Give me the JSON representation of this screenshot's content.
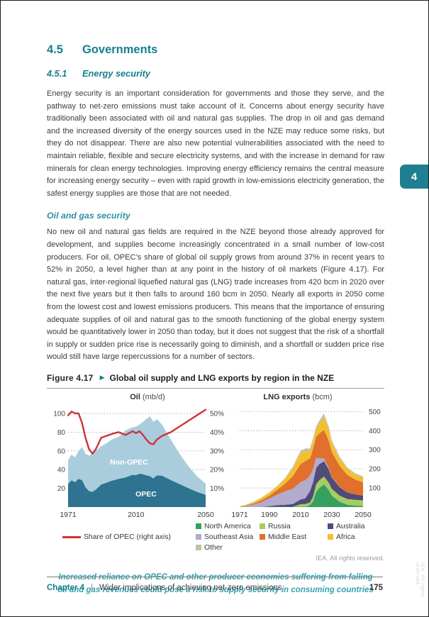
{
  "page": {
    "section_number": "4.5",
    "section_title": "Governments",
    "subsection_number": "4.5.1",
    "subsection_title": "Energy security",
    "side_tab": "4",
    "watermark": "IEA. All rights reserved.",
    "para1": "Energy security is an important consideration for governments and those they serve, and the pathway to net-zero emissions must take account of it. Concerns about energy security have traditionally been associated with oil and natural gas supplies. The drop in oil and gas demand and the increased diversity of the energy sources used in the NZE may reduce some risks, but they do not disappear. There are also new potential vulnerabilities associated with the need to maintain reliable, flexible and secure electricity systems, and with the increase in demand for raw minerals for clean energy technologies. Improving energy efficiency remains the central measure for increasing energy security – even with rapid growth in low-emissions electricity generation, the safest energy supplies are those that are not needed.",
    "sub_heading": "Oil and gas security",
    "para2": "No new oil and natural gas fields are required in the NZE beyond those already approved for development, and supplies become increasingly concentrated in a small number of low-cost producers. For oil, OPEC’s share of global oil supply grows from around 37% in recent years to 52% in 2050, a level higher than at any point in the history of oil markets (Figure 4.17). For natural gas, inter-regional liquefied natural gas (LNG) trade increases from 420 bcm in 2020 over the next five years but it then falls to around 160 bcm in 2050. Nearly all exports in 2050 come from the lowest cost and lowest emissions producers. This means that the importance of ensuring adequate supplies of oil and natural gas to the smooth functioning of the global energy system would be quantitatively lower in 2050 than today, but it does not suggest that the risk of a shortfall in supply or sudden price rise is necessarily going to diminish, and a shortfall or sudden price rise would still have large repercussions for a number of sectors.",
    "figure": {
      "label": "Figure 4.17",
      "arrow": "▶",
      "title": "Global oil supply and LNG exports by region in the NZE",
      "iea_note": "IEA. All rights reserved."
    },
    "caption_line1": "Increased reliance on OPEC and other producer economies suffering from falling",
    "caption_line2": "oil and gas revenues could pose a risk to supply security in consuming countries",
    "footer": {
      "chapter": "Chapter 4",
      "separator": "|",
      "title": "Wider implications of achieving net-zero emissions",
      "page_number": "175"
    }
  },
  "chart_data": [
    {
      "type": "area",
      "title": "Oil",
      "unit": "(mb/d)",
      "x": [
        1971,
        1973,
        1975,
        1977,
        1979,
        1981,
        1983,
        1985,
        1987,
        1990,
        1993,
        1996,
        2000,
        2004,
        2008,
        2010,
        2012,
        2014,
        2016,
        2018,
        2020,
        2022,
        2025,
        2030,
        2035,
        2040,
        2045,
        2050
      ],
      "areas": [
        {
          "name": "OPEC",
          "color": "#2e7390",
          "values": [
            24.5,
            28.5,
            26.5,
            30,
            28.8,
            21,
            17,
            16.2,
            18.6,
            24,
            25.8,
            28,
            30,
            31.6,
            34.4,
            34,
            35.6,
            35,
            33.8,
            33,
            30.5,
            33.8,
            33.4,
            28.8,
            24.5,
            20.2,
            16.2,
            13
          ]
        },
        {
          "name": "Non-OPEC",
          "color": "#a9cddd",
          "values": [
            25.5,
            27.5,
            26.5,
            30,
            35.2,
            36,
            38,
            40.8,
            41.4,
            41,
            42.2,
            44,
            45,
            50.4,
            50.6,
            52,
            52.4,
            56,
            60.2,
            64,
            60.5,
            60.2,
            54.6,
            43.2,
            32.5,
            23.8,
            16.8,
            12
          ]
        }
      ],
      "line": {
        "name": "Share of OPEC (right axis)",
        "color": "#cf3339",
        "axis": "right",
        "values": [
          49,
          51,
          50,
          50,
          45,
          37,
          31,
          28.5,
          31,
          37,
          38,
          39,
          40,
          38.5,
          40.5,
          39.5,
          40.5,
          38.5,
          36,
          34,
          33.5,
          36,
          38,
          40,
          43,
          46,
          49,
          52
        ]
      },
      "ylim_left": [
        0,
        100
      ],
      "yticks_left": [
        "20",
        "40",
        "60",
        "80",
        "100"
      ],
      "ylim_right_pct": [
        0,
        50
      ],
      "yticks_right": [
        "10%",
        "20%",
        "30%",
        "40%",
        "50%"
      ],
      "xticks": [
        1971,
        2010,
        2050
      ],
      "line_legend": "Share of OPEC (right axis)",
      "area_labels": [
        "Non-OPEC",
        "OPEC"
      ]
    },
    {
      "type": "stacked-area",
      "title": "LNG exports",
      "unit": "(bcm)",
      "x": [
        1971,
        1975,
        1980,
        1985,
        1990,
        1995,
        2000,
        2005,
        2010,
        2013,
        2016,
        2018,
        2020,
        2022,
        2025,
        2028,
        2030,
        2035,
        2040,
        2045,
        2050
      ],
      "series": [
        {
          "name": "North America",
          "color": "#35a060",
          "values": [
            1,
            1,
            1,
            1,
            2,
            2,
            2,
            2,
            2,
            2,
            10,
            30,
            80,
            100,
            120,
            90,
            60,
            28,
            12,
            8,
            5
          ]
        },
        {
          "name": "Russia",
          "color": "#a6cd60",
          "values": [
            0,
            0,
            0,
            0,
            0,
            0,
            0,
            0,
            13,
            14,
            14,
            25,
            40,
            40,
            40,
            38,
            35,
            32,
            30,
            30,
            30
          ]
        },
        {
          "name": "Australia",
          "color": "#504c77",
          "values": [
            0,
            0,
            0,
            0,
            3,
            8,
            10,
            14,
            25,
            30,
            60,
            75,
            85,
            85,
            80,
            70,
            60,
            45,
            35,
            28,
            25
          ]
        },
        {
          "name": "Southeast Asia",
          "color": "#b1abcd",
          "values": [
            1,
            4,
            12,
            25,
            40,
            55,
            70,
            80,
            90,
            95,
            80,
            70,
            55,
            30,
            15,
            6,
            4,
            2,
            1,
            0,
            0
          ]
        },
        {
          "name": "Middle East",
          "color": "#e0702b",
          "values": [
            1,
            3,
            6,
            10,
            15,
            25,
            40,
            65,
            95,
            100,
            90,
            105,
            110,
            130,
            150,
            145,
            130,
            110,
            90,
            78,
            70
          ]
        },
        {
          "name": "Africa",
          "color": "#f3c02c",
          "values": [
            1,
            3,
            8,
            12,
            15,
            18,
            25,
            40,
            55,
            50,
            38,
            40,
            38,
            50,
            65,
            55,
            45,
            36,
            30,
            27,
            25
          ]
        },
        {
          "name": "Other",
          "color": "#c8c0a4",
          "values": [
            0,
            1,
            2,
            2,
            2,
            3,
            5,
            10,
            15,
            16,
            15,
            15,
            15,
            18,
            20,
            18,
            15,
            11,
            8,
            6,
            5
          ]
        }
      ],
      "ylim": [
        0,
        500
      ],
      "yticks": [
        "100",
        "200",
        "300",
        "400",
        "500"
      ],
      "xticks": [
        1971,
        1990,
        2010,
        2030,
        2050
      ]
    }
  ]
}
